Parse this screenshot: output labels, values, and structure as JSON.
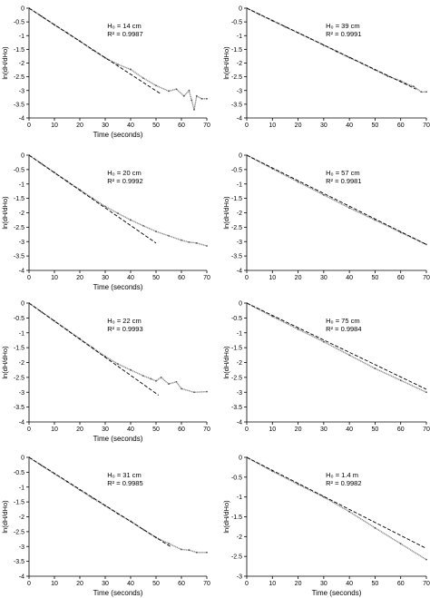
{
  "chart_data": [
    {
      "type": "line",
      "panel_position": "row-1-left",
      "xlabel": "Time (seconds)",
      "ylabel": "ln(dH/dHo)",
      "xlim": [
        0,
        70
      ],
      "ylim": [
        -4,
        0
      ],
      "x_ticks": [
        "0",
        "10",
        "20",
        "30",
        "40",
        "50",
        "60",
        "70"
      ],
      "y_ticks": [
        "0",
        "-0.5",
        "-1",
        "-1.5",
        "-2",
        "-2.5",
        "-3",
        "-3.5",
        "-4"
      ],
      "annotation_height": "H₀ = 14 cm",
      "annotation_r2": "R² = 0.9987",
      "fit": {
        "x": [
          0,
          52
        ],
        "y": [
          0,
          -3.13
        ]
      },
      "series": [
        {
          "style": "points",
          "x": [
            0,
            5,
            10,
            15,
            20,
            25,
            30,
            35,
            40,
            45,
            50,
            55,
            58,
            61,
            63,
            64,
            65,
            66,
            68,
            70
          ],
          "y": [
            0,
            -0.3,
            -0.61,
            -0.9,
            -1.2,
            -1.52,
            -1.81,
            -2.05,
            -2.23,
            -2.55,
            -2.82,
            -3.02,
            -2.95,
            -3.2,
            -3.0,
            -3.35,
            -3.7,
            -3.2,
            -3.3,
            -3.3
          ]
        }
      ]
    },
    {
      "type": "line",
      "panel_position": "row-1-right",
      "xlabel": "",
      "ylabel": "ln(dH/dHo)",
      "xlim": [
        0,
        70
      ],
      "ylim": [
        -4,
        0
      ],
      "x_ticks": [
        "0",
        "10",
        "20",
        "30",
        "40",
        "50",
        "60",
        "70"
      ],
      "y_ticks": [
        "0",
        "-0.5",
        "-1",
        "-1.5",
        "-2",
        "-2.5",
        "-3",
        "-3.5",
        "-4"
      ],
      "annotation_height": "H₀ = 39 cm",
      "annotation_r2": "R² = 0.9991",
      "fit": {
        "x": [
          0,
          66
        ],
        "y": [
          0,
          -2.95
        ]
      },
      "series": [
        {
          "style": "points",
          "x": [
            0,
            5,
            10,
            15,
            20,
            25,
            30,
            35,
            40,
            45,
            50,
            55,
            60,
            62,
            65,
            68,
            70
          ],
          "y": [
            0,
            -0.23,
            -0.46,
            -0.68,
            -0.9,
            -1.12,
            -1.35,
            -1.58,
            -1.8,
            -2.02,
            -2.25,
            -2.48,
            -2.65,
            -2.75,
            -2.85,
            -3.05,
            -3.05
          ]
        }
      ]
    },
    {
      "type": "line",
      "panel_position": "row-2-left",
      "xlabel": "Time (seconds)",
      "ylabel": "ln(dH/dHo)",
      "xlim": [
        0,
        70
      ],
      "ylim": [
        -4,
        0
      ],
      "x_ticks": [
        "0",
        "10",
        "20",
        "30",
        "40",
        "50",
        "60",
        "70"
      ],
      "y_ticks": [
        "0",
        "-0.5",
        "-1",
        "-1.5",
        "-2",
        "-2.5",
        "-3",
        "-3.5",
        "-4"
      ],
      "annotation_height": "H₀ = 20 cm",
      "annotation_r2": "R² = 0.9992",
      "fit": {
        "x": [
          0,
          50
        ],
        "y": [
          0,
          -3.05
        ]
      },
      "series": [
        {
          "style": "points",
          "x": [
            0,
            5,
            10,
            15,
            20,
            25,
            30,
            35,
            40,
            45,
            50,
            55,
            60,
            63,
            66,
            70
          ],
          "y": [
            0,
            -0.3,
            -0.6,
            -0.9,
            -1.2,
            -1.5,
            -1.78,
            -2.02,
            -2.25,
            -2.45,
            -2.65,
            -2.8,
            -2.95,
            -3.02,
            -3.05,
            -3.15
          ]
        }
      ]
    },
    {
      "type": "line",
      "panel_position": "row-2-right",
      "xlabel": "",
      "ylabel": "ln(dH/dHo)",
      "xlim": [
        0,
        70
      ],
      "ylim": [
        -4,
        0
      ],
      "x_ticks": [
        "0",
        "10",
        "20",
        "30",
        "40",
        "50",
        "60",
        "70"
      ],
      "y_ticks": [
        "0",
        "-0.5",
        "-1",
        "-1.5",
        "-2",
        "-2.5",
        "-3",
        "-3.5",
        "-4"
      ],
      "annotation_height": "H₀ = 57 cm",
      "annotation_r2": "R² = 0.9981",
      "fit": {
        "x": [
          0,
          70
        ],
        "y": [
          0,
          -3.1
        ]
      },
      "series": [
        {
          "style": "points",
          "x": [
            0,
            10,
            20,
            30,
            40,
            50,
            60,
            70
          ],
          "y": [
            0,
            -0.47,
            -0.93,
            -1.38,
            -1.83,
            -2.25,
            -2.68,
            -3.1
          ]
        }
      ]
    },
    {
      "type": "line",
      "panel_position": "row-3-left",
      "xlabel": "Time (seconds)",
      "ylabel": "ln(dH/dHo)",
      "xlim": [
        0,
        70
      ],
      "ylim": [
        -4,
        0
      ],
      "x_ticks": [
        "0",
        "10",
        "20",
        "30",
        "40",
        "50",
        "60",
        "70"
      ],
      "y_ticks": [
        "0",
        "-0.5",
        "-1",
        "-1.5",
        "-2",
        "-2.5",
        "-3",
        "-3.5",
        "-4"
      ],
      "annotation_height": "H₀ = 22 cm",
      "annotation_r2": "R² = 0.9993",
      "fit": {
        "x": [
          0,
          51
        ],
        "y": [
          0,
          -3.1
        ]
      },
      "series": [
        {
          "style": "points",
          "x": [
            0,
            5,
            10,
            15,
            20,
            25,
            30,
            35,
            40,
            45,
            48,
            50,
            52,
            55,
            58,
            60,
            65,
            70
          ],
          "y": [
            0,
            -0.3,
            -0.6,
            -0.9,
            -1.2,
            -1.5,
            -1.8,
            -2.05,
            -2.25,
            -2.45,
            -2.55,
            -2.62,
            -2.5,
            -2.72,
            -2.65,
            -2.88,
            -3.0,
            -2.98
          ]
        }
      ]
    },
    {
      "type": "line",
      "panel_position": "row-3-right",
      "xlabel": "",
      "ylabel": "ln(dH/dHo)",
      "xlim": [
        0,
        70
      ],
      "ylim": [
        -4,
        0
      ],
      "x_ticks": [
        "0",
        "10",
        "20",
        "30",
        "40",
        "50",
        "60",
        "70"
      ],
      "y_ticks": [
        "0",
        "-0.5",
        "-1",
        "-1.5",
        "-2",
        "-2.5",
        "-3",
        "-3.5",
        "-4"
      ],
      "annotation_height": "H₀ = 75 cm",
      "annotation_r2": "R² = 0.9984",
      "fit": {
        "x": [
          0,
          70
        ],
        "y": [
          0,
          -2.9
        ]
      },
      "series": [
        {
          "style": "points",
          "x": [
            0,
            10,
            20,
            30,
            40,
            50,
            60,
            70
          ],
          "y": [
            0,
            -0.45,
            -0.88,
            -1.3,
            -1.75,
            -2.2,
            -2.6,
            -3.0
          ]
        }
      ]
    },
    {
      "type": "line",
      "panel_position": "row-4-left",
      "xlabel": "Time (seconds)",
      "ylabel": "ln(dH/dHo)",
      "xlim": [
        0,
        70
      ],
      "ylim": [
        -4,
        0
      ],
      "x_ticks": [
        "0",
        "10",
        "20",
        "30",
        "40",
        "50",
        "60",
        "70"
      ],
      "y_ticks": [
        "0",
        "-0.5",
        "-1",
        "-1.5",
        "-2",
        "-2.5",
        "-3",
        "-3.5",
        "-4"
      ],
      "annotation_height": "H₀ = 31 cm",
      "annotation_r2": "R² = 0.9985",
      "fit": {
        "x": [
          0,
          56
        ],
        "y": [
          0,
          -3.02
        ]
      },
      "series": [
        {
          "style": "points",
          "x": [
            0,
            5,
            10,
            15,
            20,
            25,
            30,
            35,
            40,
            45,
            50,
            55,
            60,
            63,
            66,
            70
          ],
          "y": [
            0,
            -0.28,
            -0.55,
            -0.82,
            -1.1,
            -1.37,
            -1.63,
            -1.9,
            -2.15,
            -2.43,
            -2.7,
            -2.9,
            -3.1,
            -3.12,
            -3.2,
            -3.2
          ]
        }
      ]
    },
    {
      "type": "line",
      "panel_position": "row-4-right",
      "xlabel": "Time (seconds)",
      "ylabel": "ln(dH/dHo)",
      "xlim": [
        0,
        70
      ],
      "ylim": [
        -3,
        0
      ],
      "x_ticks": [
        "0",
        "10",
        "20",
        "30",
        "40",
        "50",
        "60",
        "70"
      ],
      "y_ticks": [
        "0",
        "-0.5",
        "-1",
        "-1.5",
        "-2",
        "-2.5",
        "-3"
      ],
      "annotation_height": "H₀ = 1.4 m",
      "annotation_r2": "R² = 0.9982",
      "fit": {
        "x": [
          0,
          70
        ],
        "y": [
          0,
          -2.3
        ]
      },
      "series": [
        {
          "style": "points",
          "x": [
            0,
            10,
            20,
            30,
            40,
            50,
            60,
            70
          ],
          "y": [
            0,
            -0.35,
            -0.68,
            -1.0,
            -1.37,
            -1.78,
            -2.18,
            -2.58
          ]
        }
      ]
    }
  ]
}
